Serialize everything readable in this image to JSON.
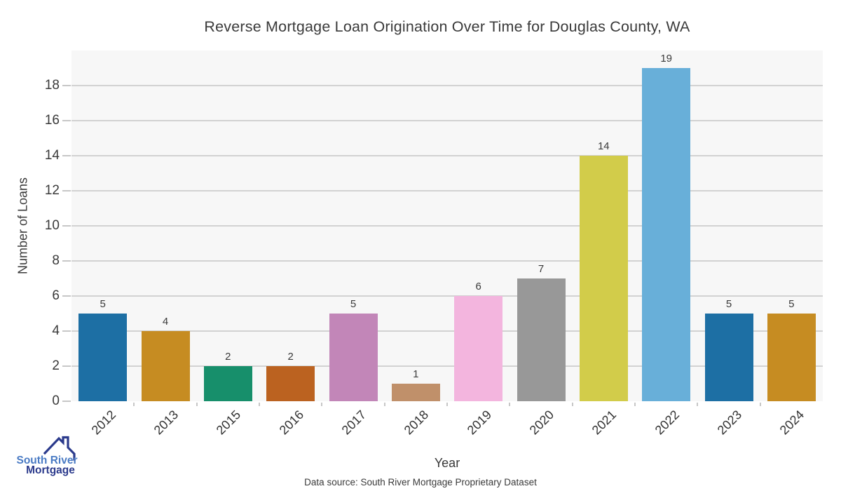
{
  "header": {
    "title": "Reverse Mortgage Loan Origination Over Time for Douglas County, WA"
  },
  "chart_data": {
    "type": "bar",
    "title": "Reverse Mortgage Loan Origination Over Time for Douglas County, WA",
    "categories": [
      "2012",
      "2013",
      "2015",
      "2016",
      "2017",
      "2018",
      "2019",
      "2020",
      "2021",
      "2022",
      "2023",
      "2024"
    ],
    "values": [
      5,
      4,
      2,
      2,
      5,
      1,
      6,
      7,
      14,
      19,
      5,
      5
    ],
    "bar_colors": [
      "#1d6fa4",
      "#c68c22",
      "#178f6b",
      "#bb6220",
      "#c286b8",
      "#c0906a",
      "#f3b5de",
      "#989898",
      "#d2cc4a",
      "#68afd9",
      "#1d6fa4",
      "#c68c22"
    ],
    "xlabel": "Year",
    "ylabel": "Number of Loans",
    "ylim": [
      0,
      20
    ],
    "yticks": [
      0,
      2,
      4,
      6,
      8,
      10,
      12,
      14,
      16,
      18
    ],
    "grid": "horizontal-only",
    "legend": "none",
    "value_labels_shown": true,
    "plot_background_color": "#f7f7f7",
    "grid_color": "#d2d2d2",
    "tick_color": "#c7c7c7",
    "text_color": "#3a3a3a"
  },
  "footer": {
    "data_source": "Data source: South River Mortgage Proprietary Dataset"
  },
  "logo": {
    "name": "South River Mortgage",
    "line1": "South River",
    "line2": "Mortgage",
    "line1_color": "#4a7bc4",
    "line2_color": "#2b3a8c",
    "roof_color": "#2b3a8c"
  }
}
